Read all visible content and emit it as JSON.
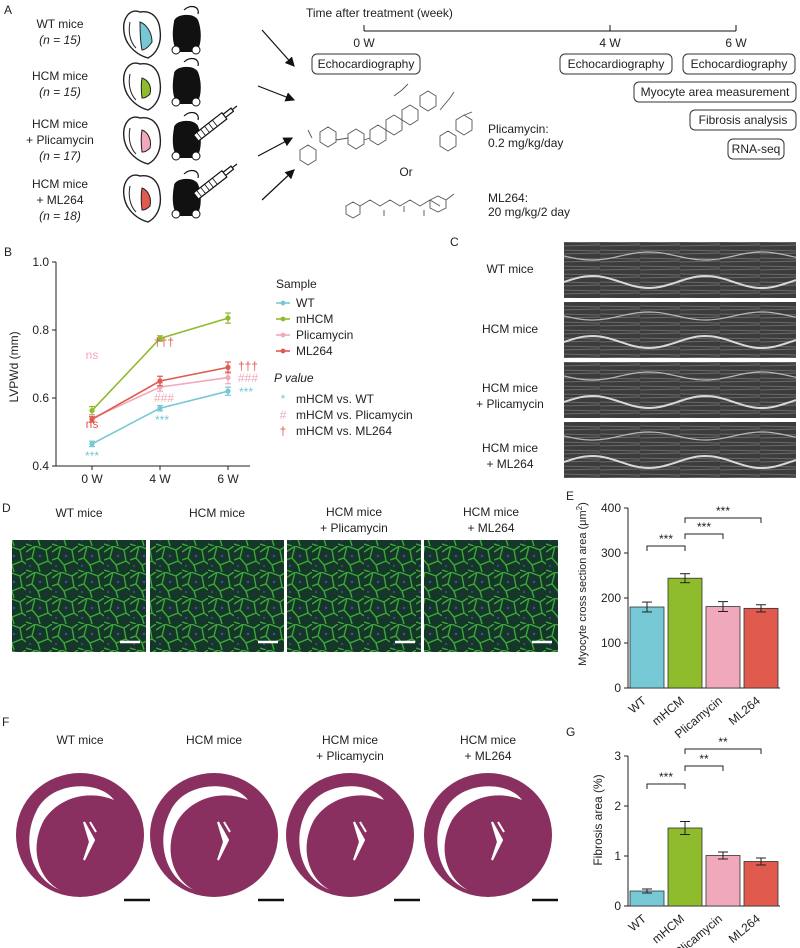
{
  "colors": {
    "wt": "#76c8d4",
    "mhcm": "#8fbc2c",
    "plicamycin": "#f0a9ba",
    "ml264": "#e05a4e",
    "fluor_green": "#3aa838",
    "fluor_bg": "#183a28",
    "he_pink": "#8a3060",
    "echo_gray": "#5a5a5a"
  },
  "icons": [
    "heart-diagram-icon",
    "mouse-silhouette-icon",
    "syringe-icon",
    "arrow-icon"
  ],
  "panelA": {
    "letter": "A",
    "groups": [
      {
        "line1": "WT mice",
        "line2": "(n = 15)"
      },
      {
        "line1": "HCM mice",
        "line2": "(n = 15)"
      },
      {
        "line1": "HCM mice",
        "line2": "+ Plicamycin",
        "line3": "(n = 17)"
      },
      {
        "line1": "HCM mice",
        "line2": "+ ML264",
        "line3": "(n = 18)"
      }
    ],
    "timeline_title": "Time after treatment (week)",
    "ticks": [
      "0 W",
      "4 W",
      "6 W"
    ],
    "boxes": [
      "Echocardiography",
      "Echocardiography",
      "Echocardiography",
      "Myocyte area measurement",
      "Fibrosis analysis",
      "RNA-seq"
    ],
    "drug1_name": "Plicamycin:",
    "drug1_dose": "0.2 mg/kg/day",
    "or_label": "Or",
    "drug2_name": "ML264:",
    "drug2_dose": "20 mg/kg/2 day"
  },
  "panelB": {
    "letter": "B",
    "legend_title": "Sample",
    "legend_items": [
      "WT",
      "mHCM",
      "Plicamycin",
      "ML264"
    ],
    "pvalue_title": "P value",
    "pvalue_items": [
      {
        "symbol": "*",
        "text": "mHCM vs. WT"
      },
      {
        "symbol": "#",
        "text": "mHCM vs. Plicamycin"
      },
      {
        "symbol": "†",
        "text": "mHCM vs. ML264"
      }
    ],
    "annotations": {
      "wt_0": "***",
      "wt_4": "***",
      "wt_6": "***",
      "ns_pli": "ns",
      "ns_ml": "ns",
      "pli_4": "###",
      "pli_6": "###",
      "ml_4": "†††",
      "ml_6": "†††"
    },
    "ytick_labels": [
      "0.4",
      "0.6",
      "0.8",
      "1.0"
    ]
  },
  "panelC": {
    "letter": "C",
    "labels": [
      {
        "line1": "WT mice"
      },
      {
        "line1": "HCM mice"
      },
      {
        "line1": "HCM mice",
        "line2": "+ Plicamycin"
      },
      {
        "line1": "HCM mice",
        "line2": "+ ML264"
      }
    ]
  },
  "panelD": {
    "letter": "D",
    "labels": [
      {
        "line1": "WT mice"
      },
      {
        "line1": "HCM mice"
      },
      {
        "line1": "HCM mice",
        "line2": "+ Plicamycin"
      },
      {
        "line1": "HCM mice",
        "line2": "+ ML264"
      }
    ]
  },
  "panelE": {
    "letter": "E",
    "ylabel_main": "Myocyte cross section area (μm",
    "ylabel_sup": "2",
    "ylabel_end": ")",
    "ytick_labels": [
      "0",
      "100",
      "200",
      "300",
      "400"
    ],
    "sig": [
      "***",
      "***",
      "***"
    ]
  },
  "panelF": {
    "letter": "F",
    "labels": [
      {
        "line1": "WT mice"
      },
      {
        "line1": "HCM mice"
      },
      {
        "line1": "HCM mice",
        "line2": "+ Plicamycin"
      },
      {
        "line1": "HCM mice",
        "line2": "+ ML264"
      }
    ]
  },
  "panelG": {
    "letter": "G",
    "ylabel": "Fibrosis area (%)",
    "ytick_labels": [
      "0",
      "1",
      "2",
      "3"
    ],
    "sig": [
      "***",
      "**",
      "**"
    ]
  },
  "chart_data": [
    {
      "id": "B",
      "type": "line",
      "x": [
        "0 W",
        "4 W",
        "6 W"
      ],
      "ylabel": "LVPWd (mm)",
      "ylim": [
        0.4,
        1.0
      ],
      "yticks": [
        0.4,
        0.6,
        0.8,
        1.0
      ],
      "series": [
        {
          "name": "WT",
          "values": [
            0.465,
            0.57,
            0.62
          ],
          "errors": [
            0.008,
            0.008,
            0.012
          ]
        },
        {
          "name": "mHCM",
          "values": [
            0.563,
            0.775,
            0.835
          ],
          "errors": [
            0.012,
            0.008,
            0.015
          ]
        },
        {
          "name": "Plicamycin",
          "values": [
            0.54,
            0.632,
            0.66
          ],
          "errors": [
            0.01,
            0.012,
            0.018
          ]
        },
        {
          "name": "ML264",
          "values": [
            0.537,
            0.65,
            0.69
          ],
          "errors": [
            0.008,
            0.014,
            0.016
          ]
        }
      ]
    },
    {
      "id": "E",
      "type": "bar",
      "categories": [
        "WT",
        "mHCM",
        "Plicamycin",
        "ML264"
      ],
      "values": [
        180,
        244,
        181,
        177
      ],
      "errors": [
        11,
        10,
        11,
        8
      ],
      "ylabel": "Myocyte cross section area (μm2)",
      "ylim": [
        0,
        400
      ],
      "yticks": [
        0,
        100,
        200,
        300,
        400
      ]
    },
    {
      "id": "G",
      "type": "bar",
      "categories": [
        "WT",
        "mHCM",
        "Plicamycin",
        "ML264"
      ],
      "values": [
        0.3,
        1.56,
        1.01,
        0.89
      ],
      "errors": [
        0.04,
        0.13,
        0.07,
        0.07
      ],
      "ylabel": "Fibrosis area (%)",
      "ylim": [
        0,
        3
      ],
      "yticks": [
        0,
        1,
        2,
        3
      ]
    }
  ]
}
